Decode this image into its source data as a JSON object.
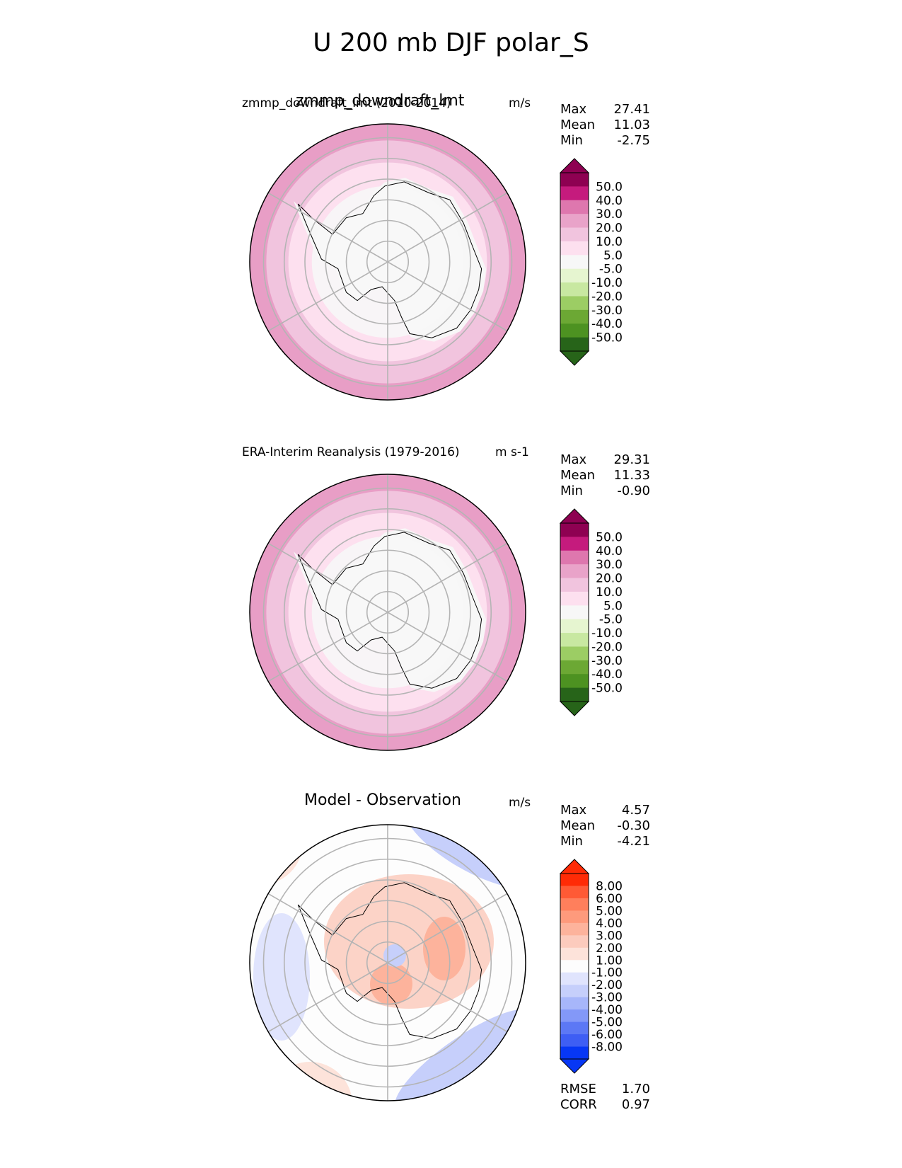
{
  "title": "U 200 mb DJF polar_S",
  "panels": [
    {
      "id": "test",
      "title_center": "zmmp_downdraft_lmt",
      "title_left": "zmmp_downdraft_lmt (2010-2014)",
      "units": "m/s",
      "stats": [
        {
          "key": "Max",
          "value": "27.41"
        },
        {
          "key": "Mean",
          "value": "11.03"
        },
        {
          "key": "Min",
          "value": "-2.75"
        }
      ],
      "colorbar": {
        "ticks": [
          "50.0",
          "40.0",
          "30.0",
          "20.0",
          "10.0",
          "5.0",
          "-5.0",
          "-10.0",
          "-20.0",
          "-30.0",
          "-40.0",
          "-50.0"
        ],
        "colors": [
          "#8e0152",
          "#c51b7d",
          "#de77ae",
          "#e9a3c9",
          "#f1c4de",
          "#fde0ef",
          "#f7f7f7",
          "#e6f5d0",
          "#c8e8a1",
          "#9ccd64",
          "#6ca834",
          "#4d9221",
          "#276419"
        ],
        "extend_top": "#8e0152",
        "extend_bottom": "#276419"
      },
      "rings_outer_to_inner": [
        "#e89ec6",
        "#f1c4de",
        "#fde0ef",
        "#f7f7f7"
      ],
      "extra_texts": []
    },
    {
      "id": "ref",
      "title_center": "",
      "title_left": "ERA-Interim Reanalysis (1979-2016)",
      "units": "m s-1",
      "stats": [
        {
          "key": "Max",
          "value": "29.31"
        },
        {
          "key": "Mean",
          "value": "11.33"
        },
        {
          "key": "Min",
          "value": "-0.90"
        }
      ],
      "colorbar": {
        "ticks": [
          "50.0",
          "40.0",
          "30.0",
          "20.0",
          "10.0",
          "5.0",
          "-5.0",
          "-10.0",
          "-20.0",
          "-30.0",
          "-40.0",
          "-50.0"
        ],
        "colors": [
          "#8e0152",
          "#c51b7d",
          "#de77ae",
          "#e9a3c9",
          "#f1c4de",
          "#fde0ef",
          "#f7f7f7",
          "#e6f5d0",
          "#c8e8a1",
          "#9ccd64",
          "#6ca834",
          "#4d9221",
          "#276419"
        ],
        "extend_top": "#8e0152",
        "extend_bottom": "#276419"
      },
      "rings_outer_to_inner": [
        "#e89ec6",
        "#f1c4de",
        "#fde0ef",
        "#f7f7f7"
      ],
      "extra_texts": []
    },
    {
      "id": "diff",
      "title_center": "Model - Observation",
      "title_left": "",
      "units": "m/s",
      "stats": [
        {
          "key": "Max",
          "value": "4.57"
        },
        {
          "key": "Mean",
          "value": "-0.30"
        },
        {
          "key": "Min",
          "value": "-4.21"
        }
      ],
      "colorbar": {
        "ticks": [
          "8.00",
          "6.00",
          "5.00",
          "4.00",
          "3.00",
          "2.00",
          "1.00",
          "-1.00",
          "-2.00",
          "-3.00",
          "-4.00",
          "-5.00",
          "-6.00",
          "-8.00"
        ],
        "colors": [
          "#ff2b06",
          "#ff5a35",
          "#ff7f5c",
          "#fe9a7c",
          "#fdb39c",
          "#fccbbd",
          "#fde3da",
          "#fdfdfd",
          "#e0e4fd",
          "#c6cffb",
          "#a7b6fa",
          "#8398f8",
          "#5c78f5",
          "#3e5ef4",
          "#0737f5"
        ],
        "extend_top": "#ff2b06",
        "extend_bottom": "#0737f5"
      },
      "extra_texts": [
        {
          "key": "RMSE",
          "value": "1.70"
        },
        {
          "key": "CORR",
          "value": "0.97"
        }
      ]
    }
  ]
}
